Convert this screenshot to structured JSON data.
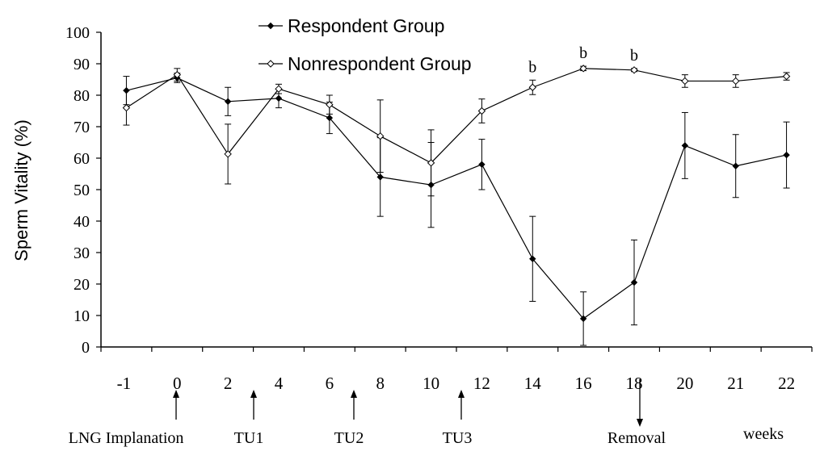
{
  "chart_data": {
    "type": "line",
    "ylabel": "Sperm Vitality (%)",
    "xlabel": "",
    "ylim": [
      0,
      100
    ],
    "yticks": [
      0,
      10,
      20,
      30,
      40,
      50,
      60,
      70,
      80,
      90,
      100
    ],
    "categories": [
      "-1",
      "0",
      "2",
      "4",
      "6",
      "8",
      "10",
      "12",
      "14",
      "16",
      "18",
      "20",
      "21",
      "22"
    ],
    "grid": false,
    "legend_position": "top-center",
    "series": [
      {
        "name": "Respondent Group",
        "marker": "filled-diamond",
        "color": "#000000",
        "values": [
          81.5,
          85.5,
          78,
          79,
          72.8,
          54,
          51.5,
          58,
          28,
          9,
          20.5,
          64,
          57.5,
          61
        ],
        "error": [
          4.5,
          1.5,
          4.5,
          3,
          5,
          12.5,
          13.5,
          8,
          13.5,
          8.5,
          13.5,
          10.5,
          10,
          10.5
        ]
      },
      {
        "name": "Nonrespondent Group",
        "marker": "open-diamond",
        "color": "#000000",
        "values": [
          76,
          86.5,
          61.3,
          82,
          77,
          67,
          58.5,
          75,
          82.5,
          88.5,
          88,
          84.5,
          84.5,
          86
        ],
        "error": [
          5.5,
          2,
          9.5,
          1.5,
          3,
          11.5,
          10.5,
          3.8,
          2.3,
          0.7,
          0.5,
          2,
          2,
          1.2
        ]
      }
    ],
    "significance": {
      "label": "b",
      "categories": [
        "14",
        "16",
        "18"
      ]
    },
    "events": [
      {
        "label": "LNG Implanation",
        "direction": "up"
      },
      {
        "label": "TU1",
        "direction": "up"
      },
      {
        "label": "TU2",
        "direction": "up"
      },
      {
        "label": "TU3",
        "direction": "up"
      },
      {
        "label": "Removal",
        "direction": "down"
      }
    ],
    "x_unit_label": "weeks"
  }
}
